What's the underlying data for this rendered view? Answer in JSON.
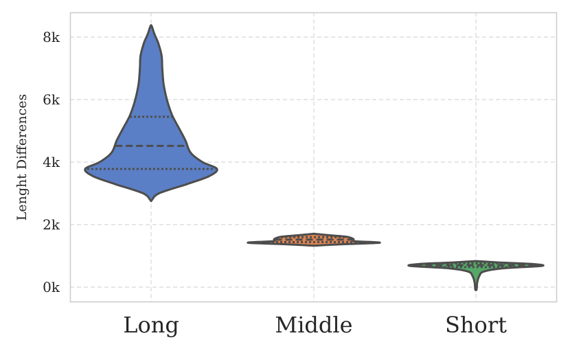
{
  "chart_data": {
    "type": "violin",
    "ylabel": "Lenght Differences",
    "yticks": [
      {
        "value": 0,
        "label": "0k"
      },
      {
        "value": 2000,
        "label": "2k"
      },
      {
        "value": 4000,
        "label": "4k"
      },
      {
        "value": 6000,
        "label": "6k"
      },
      {
        "value": 8000,
        "label": "8k"
      }
    ],
    "ylim": [
      -450,
      8800
    ],
    "grid": true,
    "inner": "quartile",
    "categories": [
      {
        "name": "Long",
        "color": "#5b7fc6",
        "min": 2780,
        "max": 8350,
        "q1": 3780,
        "median": 4520,
        "q3": 5450,
        "profile": [
          [
            2780,
            0.01
          ],
          [
            3000,
            0.12
          ],
          [
            3300,
            0.55
          ],
          [
            3550,
            0.88
          ],
          [
            3780,
            1.0
          ],
          [
            4000,
            0.78
          ],
          [
            4300,
            0.6
          ],
          [
            4700,
            0.52
          ],
          [
            5100,
            0.42
          ],
          [
            5500,
            0.32
          ],
          [
            6000,
            0.24
          ],
          [
            6500,
            0.19
          ],
          [
            7000,
            0.17
          ],
          [
            7400,
            0.16
          ],
          [
            7800,
            0.11
          ],
          [
            8100,
            0.05
          ],
          [
            8350,
            0.01
          ]
        ]
      },
      {
        "name": "Middle",
        "color": "#dd8452",
        "min": 1330,
        "max": 1700,
        "q1": 1440,
        "median": 1520,
        "q3": 1600,
        "profile": [
          [
            1330,
            0.03
          ],
          [
            1370,
            0.4
          ],
          [
            1420,
            1.0
          ],
          [
            1470,
            0.62
          ],
          [
            1540,
            0.6
          ],
          [
            1610,
            0.5
          ],
          [
            1660,
            0.24
          ],
          [
            1700,
            0.03
          ]
        ]
      },
      {
        "name": "Short",
        "color": "#55a868",
        "min": -70,
        "max": 830,
        "q1": 640,
        "median": 700,
        "q3": 760,
        "profile": [
          [
            -70,
            0.01
          ],
          [
            150,
            0.02
          ],
          [
            350,
            0.05
          ],
          [
            500,
            0.12
          ],
          [
            600,
            0.4
          ],
          [
            680,
            1.0
          ],
          [
            740,
            0.85
          ],
          [
            790,
            0.35
          ],
          [
            830,
            0.03
          ]
        ]
      }
    ]
  }
}
